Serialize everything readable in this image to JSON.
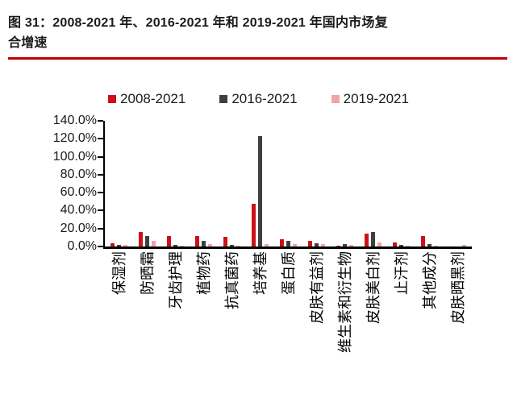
{
  "page": {
    "title_line1": "图 31：2008-2021 年、2016-2021 年和 2019-2021 年国内市场复",
    "title_line2": "合增速"
  },
  "colors": {
    "accent_rule": "#c00000",
    "axis": "#000000",
    "series_red": "#cc1217",
    "series_dark": "#3f3f3f",
    "series_pink": "#f2a2ab"
  },
  "chart_data": {
    "type": "bar",
    "title": "图 31：2008-2021 年、2016-2021 年和 2019-2021 年国内市场复合增速",
    "categories": [
      "保湿剂",
      "防晒霜",
      "牙齿护理",
      "植物药",
      "抗真菌药",
      "培养基",
      "蛋白质",
      "皮肤有益剂",
      "维生素和衍生物",
      "皮肤美白剂",
      "止汗剂",
      "其他成分",
      "皮肤晒黑剂"
    ],
    "series": [
      {
        "name": "2008-2021",
        "color": "#cc1217",
        "values": [
          4,
          16.5,
          11.5,
          12,
          10.5,
          48,
          8.5,
          6,
          1,
          14,
          4.5,
          12,
          0
        ]
      },
      {
        "name": "2016-2021",
        "color": "#3f3f3f",
        "values": [
          1.5,
          12,
          2,
          6.5,
          1.5,
          123,
          6,
          4,
          3,
          16,
          1.5,
          2.5,
          0
        ]
      },
      {
        "name": "2019-2021",
        "color": "#f2a2ab",
        "values": [
          1.5,
          6,
          0.5,
          3,
          0.5,
          2.5,
          3,
          2.5,
          1.5,
          4.5,
          0.5,
          1,
          2
        ]
      }
    ],
    "xlabel": "",
    "ylabel": "",
    "ylim": [
      0,
      140
    ],
    "ytick_step": 20,
    "ytick_labels": [
      "0.0%",
      "20.0%",
      "40.0%",
      "60.0%",
      "80.0%",
      "100.0%",
      "120.0%",
      "140.0%"
    ],
    "grid": false,
    "legend_position": "top-center"
  }
}
